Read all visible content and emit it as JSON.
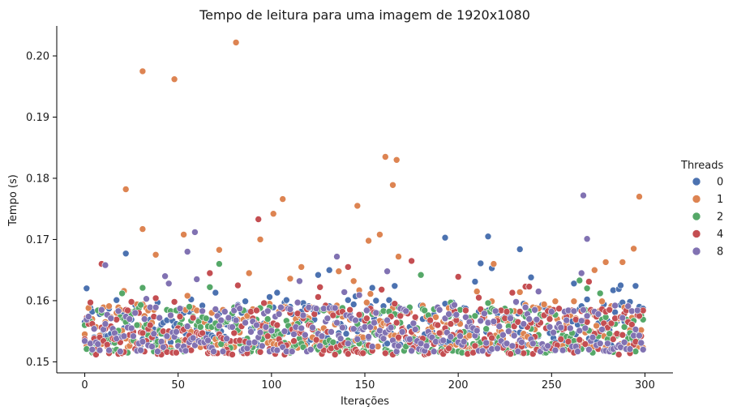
{
  "chart_data": {
    "type": "scatter",
    "title": "Tempo de leitura para uma imagem de 1920x1080",
    "xlabel": "Iterações",
    "ylabel": "Tempo (s)",
    "xlim": [
      -15,
      315
    ],
    "ylim": [
      0.1482,
      0.2049
    ],
    "x_ticks": [
      0,
      50,
      100,
      150,
      200,
      250,
      300
    ],
    "y_ticks": [
      0.15,
      0.16,
      0.17,
      0.18,
      0.19,
      0.2
    ],
    "y_tick_labels": [
      "0.15",
      "0.16",
      "0.17",
      "0.18",
      "0.19",
      "0.20"
    ],
    "legend": {
      "title": "Threads",
      "placement": "right"
    },
    "grid": false,
    "series": [
      {
        "name": "0",
        "color": "#4C72B0",
        "outliers": [
          [
            22,
            0.1677
          ],
          [
            193,
            0.1703
          ],
          [
            216,
            0.1705
          ],
          [
            233,
            0.1684
          ],
          [
            218,
            0.1653
          ],
          [
            131,
            0.165
          ],
          [
            239,
            0.1638
          ],
          [
            125,
            0.1642
          ],
          [
            262,
            0.1628
          ],
          [
            287,
            0.1625
          ]
        ],
        "points": []
      },
      {
        "name": "1",
        "color": "#DD8452",
        "outliers": [
          [
            81,
            0.2022
          ],
          [
            31,
            0.1975
          ],
          [
            48,
            0.1962
          ],
          [
            161,
            0.1835
          ],
          [
            167,
            0.183
          ],
          [
            22,
            0.1782
          ],
          [
            165,
            0.1789
          ],
          [
            106,
            0.1766
          ],
          [
            297,
            0.177
          ],
          [
            146,
            0.1755
          ],
          [
            101,
            0.1742
          ],
          [
            31,
            0.1717
          ],
          [
            53,
            0.1708
          ],
          [
            158,
            0.1708
          ],
          [
            94,
            0.17
          ],
          [
            152,
            0.1698
          ],
          [
            38,
            0.1675
          ],
          [
            72,
            0.1683
          ],
          [
            294,
            0.1685
          ],
          [
            168,
            0.1672
          ],
          [
            279,
            0.1663
          ],
          [
            288,
            0.1663
          ],
          [
            116,
            0.1655
          ],
          [
            88,
            0.1645
          ],
          [
            273,
            0.165
          ]
        ],
        "points": []
      },
      {
        "name": "2",
        "color": "#55A868",
        "outliers": [
          [
            72,
            0.166
          ],
          [
            180,
            0.1642
          ],
          [
            67,
            0.1622
          ]
        ],
        "points": []
      },
      {
        "name": "4",
        "color": "#C44E52",
        "outliers": [
          [
            93,
            0.1733
          ],
          [
            9,
            0.166
          ],
          [
            141,
            0.1655
          ],
          [
            67,
            0.1645
          ],
          [
            175,
            0.1665
          ]
        ],
        "points": []
      },
      {
        "name": "8",
        "color": "#8172B2",
        "outliers": [
          [
            267,
            0.1772
          ],
          [
            59,
            0.1712
          ],
          [
            269,
            0.1701
          ],
          [
            55,
            0.168
          ],
          [
            11,
            0.1658
          ],
          [
            135,
            0.1672
          ],
          [
            162,
            0.1648
          ],
          [
            266,
            0.1645
          ]
        ],
        "points": []
      }
    ],
    "iterations": 300
  }
}
